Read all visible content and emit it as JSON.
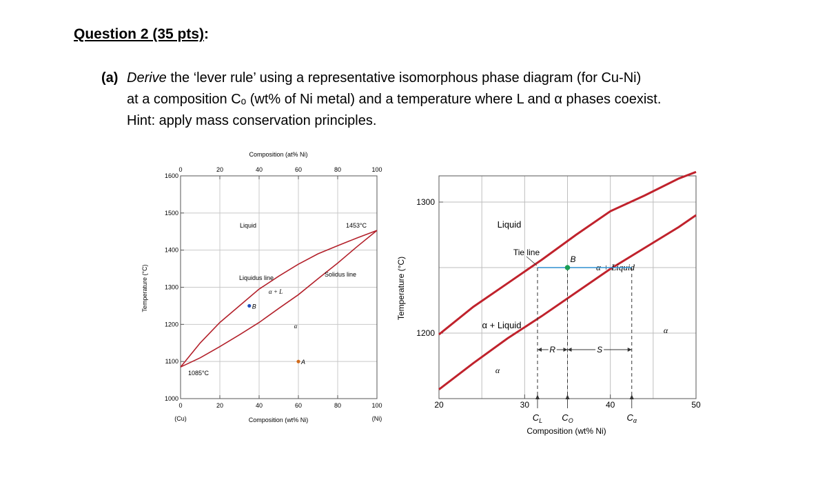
{
  "question": {
    "heading": "Question 2 (35 pts)",
    "heading_suffix": ":",
    "part_label": "(a)",
    "line1_verb": "Derive",
    "line1_rest": " the ‘lever rule’ using a representative isomorphous phase diagram (for Cu-Ni)",
    "line2": "at a composition Cₒ (wt% of Ni metal) and a temperature where L and α phases coexist.",
    "line3": "Hint: apply mass conservation principles."
  },
  "chart_data": [
    {
      "type": "line",
      "subtitle": "",
      "xlabel": "Composition (wt% Ni)",
      "x2label": "Composition (at% Ni)",
      "ylabel": "Temperature (°C)",
      "xlim": [
        0,
        100
      ],
      "ylim": [
        1000,
        1600
      ],
      "xticks": [
        "0",
        "20",
        "40",
        "60",
        "80",
        "100"
      ],
      "x2ticks": [
        "0",
        "20",
        "40",
        "60",
        "80",
        "100"
      ],
      "yticks": [
        "1000",
        "1100",
        "1200",
        "1300",
        "1400",
        "1500",
        "1600"
      ],
      "x_endpoint_labels": [
        "(Cu)",
        "(Ni)"
      ],
      "grid": true,
      "series": [
        {
          "x": [
            0,
            10,
            20,
            30,
            40,
            50,
            60,
            70,
            80,
            90,
            100
          ],
          "y": [
            1085,
            1150,
            1205,
            1250,
            1295,
            1330,
            1362,
            1390,
            1412,
            1433,
            1453
          ]
        },
        {
          "x": [
            0,
            10,
            20,
            30,
            40,
            50,
            60,
            70,
            80,
            90,
            100
          ],
          "y": [
            1085,
            1110,
            1140,
            1172,
            1205,
            1243,
            1280,
            1323,
            1365,
            1410,
            1453
          ]
        }
      ],
      "points": [
        {
          "label": "B",
          "x": 35,
          "y": 1250,
          "color": "#1f4fbf"
        },
        {
          "label": "A",
          "x": 60,
          "y": 1100,
          "color": "#d06a1a"
        }
      ],
      "annotations": {
        "liquid": "Liquid",
        "alpha_plus_l": "α + L",
        "alpha": "α",
        "liquidus": "Liquidus line",
        "solidus": "Solidus line",
        "t_ni": "1453°C",
        "t_cu": "1085°C"
      },
      "colors": {
        "curve": "#b3202a",
        "grid": "#c8c8c8"
      }
    },
    {
      "type": "line",
      "subtitle": "",
      "xlabel": "Composition (wt% Ni)",
      "ylabel": "Temperature (°C)",
      "xlim": [
        20,
        50
      ],
      "ylim": [
        1150,
        1320
      ],
      "xticks": [
        "20",
        "30",
        "40",
        "50"
      ],
      "yticks": [
        "1200",
        "1300"
      ],
      "grid": true,
      "series": [
        {
          "x": [
            20,
            24,
            28,
            32,
            36,
            40,
            44,
            48,
            50
          ],
          "y": [
            1199,
            1220,
            1238,
            1256,
            1275,
            1293,
            1305,
            1318,
            1323
          ]
        },
        {
          "x": [
            20,
            24,
            28,
            32,
            36,
            40,
            44,
            48,
            50
          ],
          "y": [
            1157,
            1177,
            1196,
            1213,
            1231,
            1249,
            1265,
            1281,
            1290
          ]
        }
      ],
      "tie_line": {
        "y": 1250,
        "x_from": 31.5,
        "x_to": 42.5
      },
      "point": {
        "label": "B",
        "x": 35,
        "y": 1250
      },
      "markers": [
        {
          "label": "C_L",
          "x": 31.5
        },
        {
          "label": "C_O",
          "x": 35
        },
        {
          "label": "C_α",
          "x": 42.5
        }
      ],
      "annotations": {
        "liquid": "Liquid",
        "tie_line": "Tie line",
        "alpha_plus_liquid": "α + Liquid",
        "alpha_plus_liquid_lower": "α + Liquid",
        "alpha": "α",
        "alpha_right": "α",
        "R": "R",
        "S": "S"
      },
      "colors": {
        "curve": "#c0222c",
        "tie": "#2e8fd0",
        "point": "#1a9e55"
      }
    }
  ]
}
